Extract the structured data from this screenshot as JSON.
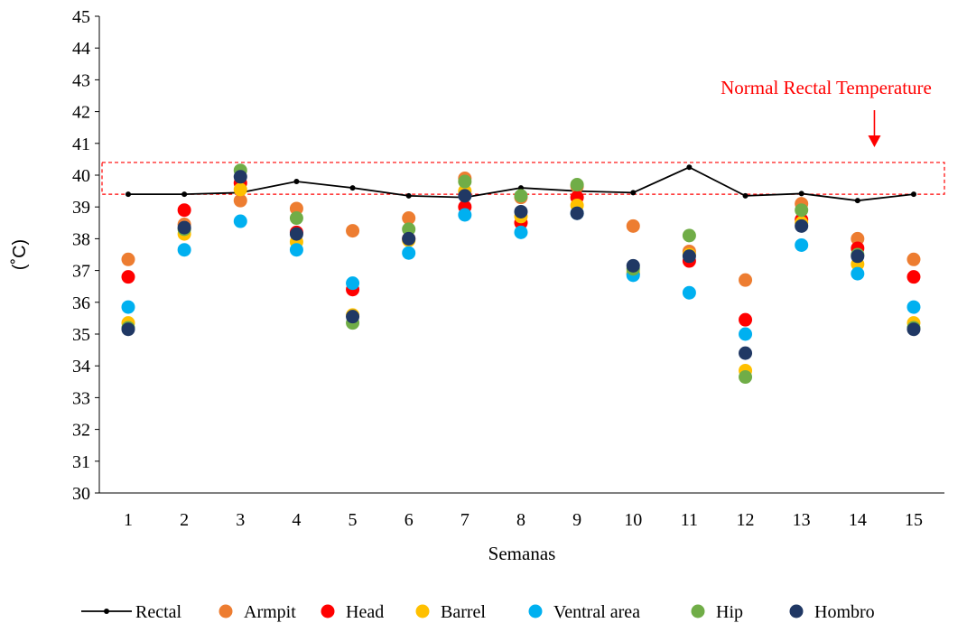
{
  "chart_data": {
    "type": "scatter",
    "title": "",
    "xlabel": "Semanas",
    "ylabel": "(˚C)",
    "x": [
      1,
      2,
      3,
      4,
      5,
      6,
      7,
      8,
      9,
      10,
      11,
      12,
      13,
      14,
      15
    ],
    "x_ticks": [
      "1",
      "2",
      "3",
      "4",
      "5",
      "6",
      "7",
      "8",
      "9",
      "10",
      "11",
      "12",
      "13",
      "14",
      "15"
    ],
    "ylim": [
      30,
      45
    ],
    "y_ticks": [
      "30",
      "31",
      "32",
      "33",
      "34",
      "35",
      "36",
      "37",
      "38",
      "39",
      "40",
      "41",
      "42",
      "43",
      "44",
      "45"
    ],
    "grid": false,
    "legend_position": "bottom",
    "annotation": {
      "text": "Normal Rectal Temperature",
      "band": [
        39.4,
        40.4
      ],
      "arrow_x": 14.3,
      "color": "#ff0000"
    },
    "series": [
      {
        "name": "Rectal",
        "kind": "line",
        "color": "#000000",
        "values": [
          39.4,
          39.4,
          39.45,
          39.8,
          39.6,
          39.35,
          39.3,
          39.6,
          39.5,
          39.45,
          40.25,
          39.35,
          39.42,
          39.2,
          39.4
        ]
      },
      {
        "name": "Armpit",
        "kind": "scatter",
        "color": "#ED7D31",
        "values": [
          37.35,
          38.45,
          39.2,
          38.95,
          38.25,
          38.65,
          39.9,
          39.3,
          39.65,
          38.4,
          37.6,
          36.7,
          39.1,
          38.0,
          37.35
        ]
      },
      {
        "name": "Head",
        "kind": "scatter",
        "color": "#FF0000",
        "values": [
          36.8,
          38.9,
          39.75,
          38.2,
          36.4,
          38.0,
          39.0,
          38.5,
          39.3,
          36.9,
          37.3,
          35.45,
          38.6,
          37.7,
          36.8
        ]
      },
      {
        "name": "Barrel",
        "kind": "scatter",
        "color": "#FFC000",
        "values": [
          35.35,
          38.15,
          39.55,
          37.9,
          35.6,
          37.95,
          39.5,
          38.7,
          39.05,
          36.95,
          37.5,
          33.85,
          38.5,
          37.2,
          35.35
        ]
      },
      {
        "name": "Ventral area",
        "kind": "scatter",
        "color": "#00B0F0",
        "values": [
          35.85,
          37.65,
          38.55,
          37.65,
          36.6,
          37.55,
          38.75,
          38.2,
          38.8,
          36.85,
          36.3,
          35.0,
          37.8,
          36.9,
          35.85
        ]
      },
      {
        "name": "Hip",
        "kind": "scatter",
        "color": "#70AD47",
        "values": [
          35.2,
          38.3,
          40.15,
          38.65,
          35.35,
          38.3,
          39.8,
          39.35,
          39.7,
          37.05,
          38.1,
          33.65,
          38.9,
          37.5,
          35.2
        ]
      },
      {
        "name": "Hombro",
        "kind": "scatter",
        "color": "#203864",
        "values": [
          35.15,
          38.35,
          39.95,
          38.15,
          35.55,
          38.0,
          39.35,
          38.85,
          38.8,
          37.15,
          37.45,
          34.4,
          38.4,
          37.45,
          35.15
        ]
      }
    ]
  }
}
